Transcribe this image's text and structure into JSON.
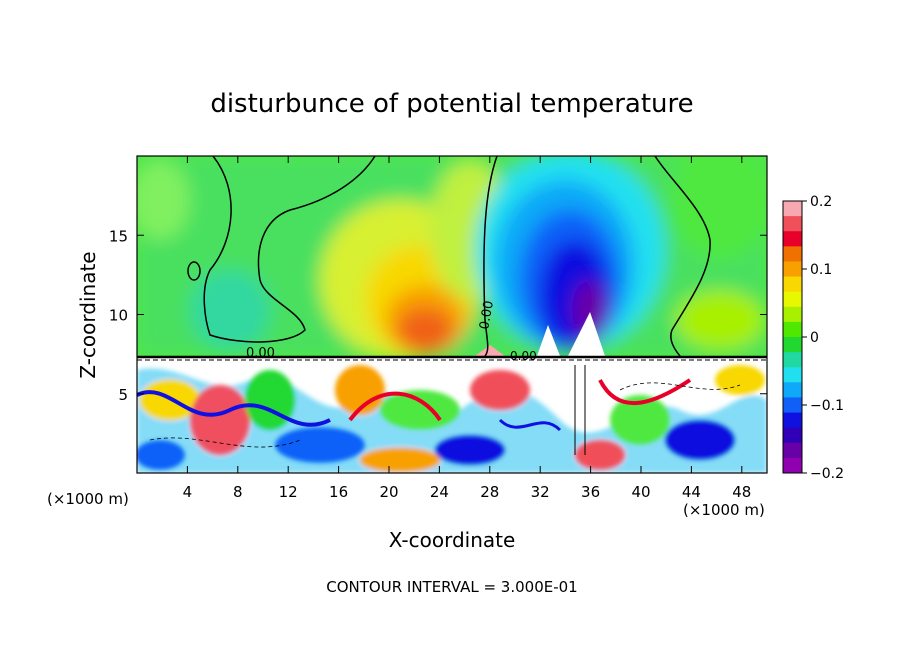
{
  "chart_data": {
    "type": "heatmap",
    "title": "disturbunce of potential temperature",
    "xlabel": "X-coordinate",
    "ylabel": "Z-coordinate",
    "x_unit": "(×1000 m)",
    "x_unit_right": "(×1000 m)",
    "footer": "CONTOUR INTERVAL = 3.000E-01",
    "xlim": [
      0,
      50
    ],
    "ylim": [
      0,
      20
    ],
    "x_ticks": [
      4,
      8,
      12,
      16,
      20,
      24,
      28,
      32,
      36,
      40,
      44,
      48
    ],
    "y_ticks": [
      5,
      10,
      15
    ],
    "colorbar": {
      "range": [
        -0.2,
        0.2
      ],
      "ticks": [
        0.2,
        0.1,
        0,
        -0.1,
        -0.2
      ],
      "tick_labels": [
        "0.2",
        "0.1",
        "0",
        "−0.1",
        "−0.2"
      ],
      "colors": [
        "#f8a8b0",
        "#f0505a",
        "#e8002a",
        "#f07000",
        "#f8a000",
        "#f8d800",
        "#e8f800",
        "#a8f000",
        "#50e800",
        "#20d830",
        "#20d8a0",
        "#20e0f0",
        "#10a8f8",
        "#1060f8",
        "#1010e0",
        "#3000b8",
        "#6800a8",
        "#9000b0"
      ]
    },
    "contour_labels": [
      "0.00",
      "0.00",
      "0.00"
    ],
    "features": [
      {
        "name": "warm-anomaly",
        "x": 22,
        "z": 9.5,
        "value": 0.15
      },
      {
        "name": "cold-anomaly",
        "x": 35,
        "z": 11,
        "value": -0.2
      },
      {
        "name": "turbulent-boundary-layer",
        "x_range": [
          0,
          50
        ],
        "z_range": [
          0,
          7.3
        ]
      }
    ]
  },
  "contour_label_positions_note": ""
}
